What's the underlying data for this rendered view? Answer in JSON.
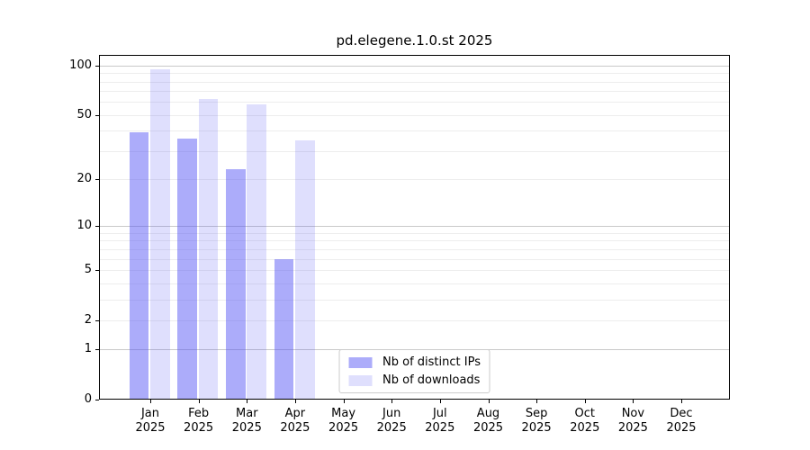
{
  "title": "pd.elegene.1.0.st 2025",
  "chart_data": {
    "type": "bar",
    "title": "pd.elegene.1.0.st 2025",
    "categories": [
      "Jan",
      "Feb",
      "Mar",
      "Apr",
      "May",
      "Jun",
      "Jul",
      "Aug",
      "Sep",
      "Oct",
      "Nov",
      "Dec"
    ],
    "tick_label_year": "2025",
    "series": [
      {
        "name": "Nb of distinct IPs",
        "color": "#a8a8f8",
        "fill_rgba": "rgba(85,85,245,0.49)",
        "values": [
          39,
          36,
          23,
          6,
          null,
          null,
          null,
          null,
          null,
          null,
          null,
          null
        ]
      },
      {
        "name": "Nb of downloads",
        "color": "#dcdcf8",
        "fill_rgba": "rgba(85,85,245,0.19)",
        "values": [
          95,
          63,
          58,
          35,
          null,
          null,
          null,
          null,
          null,
          null,
          null,
          null
        ]
      }
    ],
    "yscale": "log1p",
    "yticks": [
      0,
      1,
      2,
      5,
      10,
      20,
      50,
      100
    ],
    "major_gridlines": [
      1,
      10,
      100
    ],
    "minor_gridlines": [
      2,
      3,
      4,
      5,
      6,
      7,
      8,
      9,
      20,
      30,
      40,
      50,
      60,
      70,
      80,
      90
    ],
    "ylim": [
      0,
      116
    ],
    "grid": true,
    "legend_position": "lower center"
  },
  "colors": {
    "background": "#ffffff",
    "axis": "#000000",
    "major_grid": "#c9c9c9",
    "minor_grid": "#ededed",
    "legend_border": "#cccccc",
    "text": "#000000"
  }
}
